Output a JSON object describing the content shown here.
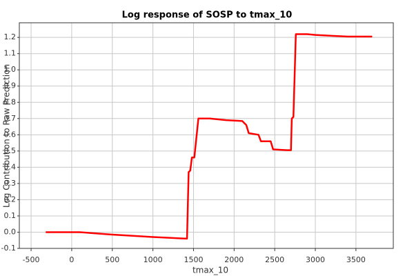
{
  "chart_data": {
    "type": "line",
    "title": "Log response of SOSP to tmax_10",
    "x_label": "tmax_10",
    "y_label": "Log Contribution to Raw Prediction",
    "xlim": [
      -645,
      3960
    ],
    "ylim": [
      -0.1,
      1.29
    ],
    "xticks": [
      -500,
      0,
      500,
      1000,
      1500,
      2000,
      2500,
      3000,
      3500
    ],
    "yticks": [
      -0.1,
      {
        "value": 0,
        "label": "0.0"
      },
      0.1,
      0.2,
      0.3,
      0.4,
      0.5,
      0.6,
      0.7,
      0.8,
      0.9,
      {
        "value": 1,
        "label": "1.0"
      },
      1.1,
      1.2
    ],
    "grid": true,
    "series": [
      {
        "name": "SOSP",
        "color": "#ff0000",
        "x": [
          -320,
          100,
          500,
          1000,
          1420,
          1440,
          1460,
          1480,
          1510,
          1560,
          1700,
          1900,
          2100,
          2150,
          2180,
          2300,
          2330,
          2450,
          2480,
          2650,
          2700,
          2710,
          2730,
          2760,
          2900,
          3000,
          3200,
          3400,
          3700
        ],
        "values": [
          0,
          0,
          -0.015,
          -0.03,
          -0.04,
          0.37,
          0.38,
          0.46,
          0.46,
          0.7,
          0.7,
          0.69,
          0.685,
          0.66,
          0.61,
          0.6,
          0.56,
          0.56,
          0.51,
          0.505,
          0.505,
          0.7,
          0.71,
          1.22,
          1.22,
          1.215,
          1.21,
          1.205,
          1.205
        ]
      }
    ]
  }
}
